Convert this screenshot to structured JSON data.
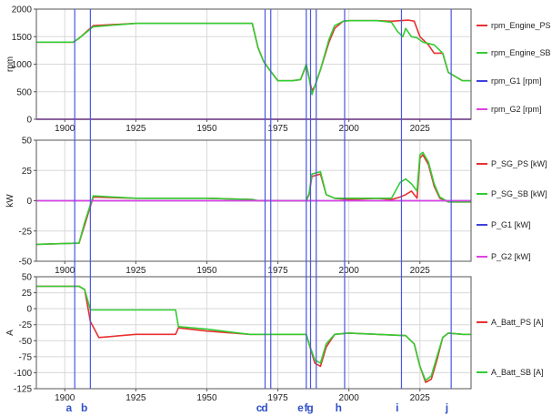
{
  "chart_data": [
    {
      "type": "line",
      "ylabel": "rpm",
      "ylim": [
        0,
        2000
      ],
      "yticks": [
        0,
        500,
        1000,
        1500,
        2000
      ],
      "xlim": [
        1890,
        2043
      ],
      "xticks": [
        1900,
        1925,
        1950,
        1975,
        2000,
        2025
      ],
      "grid": true,
      "legend_position": "right",
      "series": [
        {
          "name": "rpm_Engine_PS",
          "color": "#e83030",
          "x": [
            1890,
            1903,
            1905,
            1910,
            1925,
            1950,
            1966,
            1968,
            1970,
            1972,
            1975,
            1980,
            1983,
            1985,
            1986,
            1987,
            1988,
            1990,
            1993,
            1995,
            1998,
            2000,
            2010,
            2015,
            2018,
            2021,
            2023,
            2025,
            2028,
            2030,
            2033,
            2035,
            2040,
            2043
          ],
          "y": [
            1400,
            1400,
            1470,
            1700,
            1740,
            1740,
            1740,
            1300,
            1050,
            900,
            700,
            700,
            720,
            980,
            750,
            520,
            600,
            900,
            1400,
            1650,
            1780,
            1790,
            1790,
            1780,
            1790,
            1800,
            1780,
            1500,
            1350,
            1200,
            1200,
            850,
            700,
            700
          ]
        },
        {
          "name": "rpm_Engine_SB",
          "color": "#33cc33",
          "x": [
            1890,
            1903,
            1905,
            1910,
            1925,
            1950,
            1966,
            1968,
            1970,
            1972,
            1975,
            1980,
            1983,
            1985,
            1986,
            1987,
            1988,
            1990,
            1993,
            1995,
            1998,
            2000,
            2010,
            2015,
            2017,
            2019,
            2020,
            2022,
            2024,
            2026,
            2030,
            2033,
            2035,
            2040,
            2043
          ],
          "y": [
            1400,
            1400,
            1470,
            1680,
            1740,
            1740,
            1740,
            1300,
            1050,
            900,
            700,
            700,
            720,
            1000,
            750,
            450,
            600,
            900,
            1450,
            1700,
            1780,
            1790,
            1790,
            1760,
            1600,
            1500,
            1650,
            1500,
            1480,
            1400,
            1350,
            1200,
            850,
            700,
            700
          ]
        },
        {
          "name": "rpm_G1 [rpm]",
          "color": "#4040e0",
          "x": [
            1890,
            2043
          ],
          "y": [
            0,
            0
          ]
        },
        {
          "name": "rpm_G2 [rpm]",
          "color": "#e040e0",
          "x": [
            1890,
            2043
          ],
          "y": [
            0,
            0
          ]
        }
      ]
    },
    {
      "type": "line",
      "ylabel": "kW",
      "ylim": [
        -50,
        50
      ],
      "yticks": [
        -50,
        -25,
        0,
        25,
        50
      ],
      "xlim": [
        1890,
        2043
      ],
      "xticks": [
        1900,
        1925,
        1950,
        1975,
        2000,
        2025
      ],
      "grid": true,
      "legend_position": "right",
      "series": [
        {
          "name": "P_SG_PS [kW]",
          "color": "#e83030",
          "x": [
            1890,
            1905,
            1907,
            1910,
            1925,
            1950,
            1966,
            1968,
            1985,
            1986,
            1987,
            1990,
            1992,
            1995,
            2000,
            2010,
            2015,
            2018,
            2020,
            2022,
            2024,
            2025,
            2026,
            2028,
            2030,
            2032,
            2035,
            2043
          ],
          "y": [
            -36,
            -35,
            -20,
            3,
            2,
            2,
            1,
            0,
            0,
            5,
            20,
            22,
            5,
            2,
            1,
            2,
            1,
            3,
            5,
            8,
            2,
            35,
            38,
            30,
            12,
            2,
            -1,
            -1
          ]
        },
        {
          "name": "P_SG_SB [kW]",
          "color": "#33cc33",
          "x": [
            1890,
            1905,
            1907,
            1910,
            1925,
            1950,
            1966,
            1968,
            1985,
            1986,
            1987,
            1990,
            1992,
            1995,
            2000,
            2010,
            2015,
            2018,
            2020,
            2022,
            2024,
            2025,
            2026,
            2028,
            2030,
            2032,
            2035,
            2043
          ],
          "y": [
            -36,
            -35,
            -18,
            4,
            2,
            2,
            1,
            0,
            0,
            6,
            22,
            24,
            5,
            2,
            2,
            2,
            2,
            15,
            18,
            14,
            8,
            38,
            40,
            32,
            14,
            3,
            -1,
            -1
          ]
        },
        {
          "name": "P_G1 [kW]",
          "color": "#4040e0",
          "x": [
            1890,
            2043
          ],
          "y": [
            0,
            0
          ]
        },
        {
          "name": "P_G2 [kW]",
          "color": "#e040e0",
          "x": [
            1890,
            2043
          ],
          "y": [
            0,
            0
          ]
        }
      ]
    },
    {
      "type": "line",
      "ylabel": "A",
      "ylim": [
        -125,
        50
      ],
      "yticks": [
        -125,
        -100,
        -75,
        -50,
        -25,
        0,
        25,
        50
      ],
      "xlim": [
        1890,
        2043
      ],
      "xticks": [
        1900,
        1925,
        1950,
        1975,
        2000,
        2025
      ],
      "grid": true,
      "legend_position": "right",
      "series": [
        {
          "name": "A_Batt_PS [A]",
          "color": "#e83030",
          "x": [
            1890,
            1905,
            1907,
            1909,
            1912,
            1925,
            1939,
            1940,
            1950,
            1965,
            1985,
            1986,
            1988,
            1990,
            1992,
            1995,
            2000,
            2010,
            2020,
            2023,
            2025,
            2027,
            2029,
            2031,
            2033,
            2035,
            2040,
            2043
          ],
          "y": [
            35,
            35,
            30,
            -20,
            -45,
            -40,
            -40,
            -30,
            -35,
            -40,
            -40,
            -55,
            -85,
            -90,
            -60,
            -40,
            -38,
            -40,
            -42,
            -55,
            -90,
            -115,
            -110,
            -80,
            -45,
            -38,
            -40,
            -40
          ]
        },
        {
          "name": "A_Batt_SB [A]",
          "color": "#33cc33",
          "x": [
            1890,
            1905,
            1907,
            1909,
            1912,
            1925,
            1939,
            1940,
            1950,
            1965,
            1985,
            1986,
            1988,
            1990,
            1992,
            1995,
            2000,
            2010,
            2020,
            2023,
            2025,
            2027,
            2029,
            2031,
            2033,
            2035,
            2040,
            2043
          ],
          "y": [
            35,
            35,
            30,
            -2,
            -2,
            -2,
            -2,
            -28,
            -32,
            -40,
            -40,
            -55,
            -80,
            -85,
            -55,
            -40,
            -38,
            -40,
            -42,
            -55,
            -90,
            -112,
            -105,
            -75,
            -45,
            -38,
            -40,
            -40
          ]
        }
      ]
    }
  ],
  "markers": [
    {
      "label": "a",
      "x": 1903.5
    },
    {
      "label": "b",
      "x": 1909
    },
    {
      "label": "c",
      "x": 1970.5
    },
    {
      "label": "d",
      "x": 1972.5
    },
    {
      "label": "e",
      "x": 1985
    },
    {
      "label": "f",
      "x": 1986.5
    },
    {
      "label": "g",
      "x": 1988.5
    },
    {
      "label": "h",
      "x": 1998.5
    },
    {
      "label": "i",
      "x": 2018.5
    },
    {
      "label": "j",
      "x": 2036
    }
  ],
  "colors": {
    "marker_line": "#4a55e0",
    "grid": "#d8d8d8"
  }
}
